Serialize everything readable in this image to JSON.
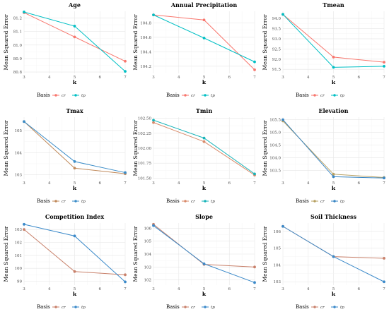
{
  "chart_data": [
    {
      "type": "line",
      "title": "Age",
      "xlabel": "k",
      "ylabel": "Mean Squared Error",
      "x": [
        3,
        5,
        7
      ],
      "xticks": [
        "3",
        "4",
        "5",
        "6",
        "7"
      ],
      "yticks": [
        "80.8",
        "80.9",
        "81.0",
        "81.1",
        "81.2"
      ],
      "ylim": [
        80.79,
        81.25
      ],
      "colors": {
        "cr": "#F8766D",
        "tp": "#00BFC4"
      },
      "series": [
        {
          "name": "cr",
          "values": [
            81.24,
            81.06,
            80.88
          ]
        },
        {
          "name": "tp",
          "values": [
            81.245,
            81.14,
            80.805
          ]
        }
      ],
      "legend": {
        "title": "Basis",
        "items": [
          "cr",
          "tp"
        ],
        "position": "bottom"
      }
    },
    {
      "type": "line",
      "title": "Annual Precipitation",
      "xlabel": "k",
      "ylabel": "Mean Squared Error",
      "x": [
        3,
        5,
        7
      ],
      "xticks": [
        "3",
        "4",
        "5",
        "6",
        "7"
      ],
      "yticks": [
        "104.2",
        "104.4",
        "104.6",
        "104.8"
      ],
      "ylim": [
        104.1,
        104.96
      ],
      "colors": {
        "cr": "#F8766D",
        "tp": "#00BFC4"
      },
      "series": [
        {
          "name": "cr",
          "values": [
            104.91,
            104.84,
            104.15
          ]
        },
        {
          "name": "tp",
          "values": [
            104.91,
            104.59,
            104.26
          ]
        }
      ],
      "legend": {
        "title": "Basis",
        "items": [
          "cr",
          "tp"
        ],
        "position": "bottom"
      }
    },
    {
      "type": "line",
      "title": "Tmean",
      "xlabel": "k",
      "ylabel": "Mean Squared Error",
      "x": [
        3,
        5,
        7
      ],
      "xticks": [
        "3",
        "4",
        "5",
        "6",
        "7"
      ],
      "yticks": [
        "91.5",
        "92.0",
        "92.5",
        "93.0",
        "93.5",
        "94.0"
      ],
      "ylim": [
        91.3,
        94.35
      ],
      "colors": {
        "cr": "#F8766D",
        "tp": "#00BFC4"
      },
      "series": [
        {
          "name": "cr",
          "values": [
            94.2,
            92.1,
            91.85
          ]
        },
        {
          "name": "tp",
          "values": [
            94.2,
            91.6,
            91.65
          ]
        }
      ],
      "legend": {
        "title": "Basis",
        "items": [
          "cr",
          "tp"
        ],
        "position": "bottom"
      }
    },
    {
      "type": "line",
      "title": "Tmax",
      "xlabel": "k",
      "ylabel": "Mean Squared Error",
      "x": [
        3,
        5,
        7
      ],
      "xticks": [
        "3",
        "4",
        "5",
        "6",
        "7"
      ],
      "yticks": [
        "103",
        "104",
        "105"
      ],
      "ylim": [
        102.8,
        105.6
      ],
      "colors": {
        "cr": "#C08A5B",
        "tp": "#3C8DC8"
      },
      "series": [
        {
          "name": "cr",
          "values": [
            105.4,
            103.3,
            103.05
          ]
        },
        {
          "name": "tp",
          "values": [
            105.4,
            103.6,
            103.1
          ]
        }
      ],
      "legend": {
        "title": "Basis",
        "items": [
          "cr",
          "tp"
        ],
        "position": "bottom"
      }
    },
    {
      "type": "line",
      "title": "Tmin",
      "xlabel": "k",
      "ylabel": "Mean Squared Error",
      "x": [
        3,
        5,
        7
      ],
      "xticks": [
        "3",
        "4",
        "5",
        "6",
        "7"
      ],
      "yticks": [
        "101.50",
        "101.75",
        "102.00",
        "102.25",
        "102.50"
      ],
      "ylim": [
        101.48,
        102.52
      ],
      "colors": {
        "cr": "#D98A6A",
        "tp": "#16B3B8"
      },
      "series": [
        {
          "name": "cr",
          "values": [
            102.43,
            102.11,
            101.55
          ]
        },
        {
          "name": "tp",
          "values": [
            102.47,
            102.17,
            101.57
          ]
        }
      ],
      "legend": {
        "title": "Basis",
        "items": [
          "cr",
          "tp"
        ],
        "position": "bottom"
      }
    },
    {
      "type": "line",
      "title": "Elevation",
      "xlabel": "k",
      "ylabel": "Mean Squared Error",
      "x": [
        3,
        5,
        7
      ],
      "xticks": [
        "3",
        "4",
        "5",
        "6",
        "7"
      ],
      "yticks": [
        "103.5",
        "104.0",
        "104.5",
        "105.0",
        "105.5"
      ],
      "ylim": [
        103.15,
        105.6
      ],
      "colors": {
        "cr": "#B7A061",
        "tp": "#3A86C4"
      },
      "series": [
        {
          "name": "cr",
          "values": [
            105.45,
            103.35,
            103.22
          ]
        },
        {
          "name": "tp",
          "values": [
            105.5,
            103.25,
            103.2
          ]
        }
      ],
      "legend": {
        "title": "Basis",
        "items": [
          "cr",
          "tp"
        ],
        "position": "bottom"
      }
    },
    {
      "type": "line",
      "title": "Competition Index",
      "xlabel": "k",
      "ylabel": "Mean Squared Error",
      "x": [
        3,
        5,
        7
      ],
      "xticks": [
        "3",
        "4",
        "5",
        "6",
        "7"
      ],
      "yticks": [
        "99",
        "100",
        "101",
        "102",
        "103"
      ],
      "ylim": [
        98.7,
        103.5
      ],
      "colors": {
        "cr": "#C8806A",
        "tp": "#3A89C9"
      },
      "series": [
        {
          "name": "cr",
          "values": [
            103.0,
            99.75,
            99.5
          ]
        },
        {
          "name": "tp",
          "values": [
            103.4,
            102.5,
            98.95
          ]
        }
      ],
      "legend": {
        "title": "Basis",
        "items": [
          "cr",
          "tp"
        ],
        "position": "bottom"
      }
    },
    {
      "type": "line",
      "title": "Slope",
      "xlabel": "k",
      "ylabel": "Mean Squared Error",
      "x": [
        3,
        5,
        7
      ],
      "xticks": [
        "3",
        "4",
        "5",
        "6",
        "7"
      ],
      "yticks": [
        "102",
        "103",
        "104",
        "105",
        "106"
      ],
      "ylim": [
        101.6,
        106.4
      ],
      "colors": {
        "cr": "#C8806A",
        "tp": "#3A89C9"
      },
      "series": [
        {
          "name": "cr",
          "values": [
            106.3,
            103.2,
            103.0
          ]
        },
        {
          "name": "tp",
          "values": [
            106.2,
            103.25,
            101.8
          ]
        }
      ],
      "legend": {
        "title": "Basis",
        "items": [
          "cr",
          "tp"
        ],
        "position": "bottom"
      }
    },
    {
      "type": "line",
      "title": "Soil Thickness",
      "xlabel": "k",
      "ylabel": "Mean Squared Error",
      "x": [
        3,
        5,
        7
      ],
      "xticks": [
        "3",
        "4",
        "5",
        "6",
        "7"
      ],
      "yticks": [
        "103",
        "104",
        "105",
        "106"
      ],
      "ylim": [
        102.8,
        106.5
      ],
      "colors": {
        "cr": "#C8806A",
        "tp": "#3A89C9"
      },
      "series": [
        {
          "name": "cr",
          "values": [
            106.3,
            104.5,
            104.4
          ]
        },
        {
          "name": "tp",
          "values": [
            106.3,
            104.5,
            103.0
          ]
        }
      ],
      "legend": {
        "title": "Basis",
        "items": [
          "cr",
          "tp"
        ],
        "position": "bottom"
      }
    }
  ]
}
